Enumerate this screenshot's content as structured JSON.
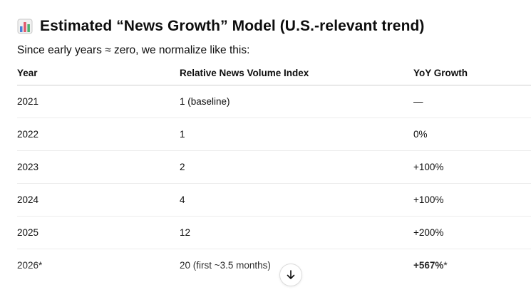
{
  "heading": {
    "icon": "bar-chart-icon",
    "title": "Estimated “News Growth” Model (U.S.-relevant trend)"
  },
  "intro": "Since early years ≈ zero, we normalize like this:",
  "table": {
    "headers": [
      "Year",
      "Relative News Volume Index",
      "YoY Growth"
    ],
    "rows": [
      {
        "year": "2021",
        "index": "1 (baseline)",
        "growth": "—"
      },
      {
        "year": "2022",
        "index": "1",
        "growth": "0%"
      },
      {
        "year": "2023",
        "index": "2",
        "growth": "+100%"
      },
      {
        "year": "2024",
        "index": "4",
        "growth": "+100%"
      },
      {
        "year": "2025",
        "index": "12",
        "growth": "+200%"
      },
      {
        "year": "2026*",
        "index": "20 (first ~3.5 months)",
        "growth_bold": "+567%",
        "growth_suffix": "*"
      }
    ]
  },
  "scroll_button": {
    "icon": "arrow-down-icon"
  },
  "colors": {
    "text": "#0d0d0d",
    "icon_bar_blue": "#4a7fd6",
    "icon_bar_red": "#e0566a",
    "icon_bar_green": "#4caf6e"
  }
}
